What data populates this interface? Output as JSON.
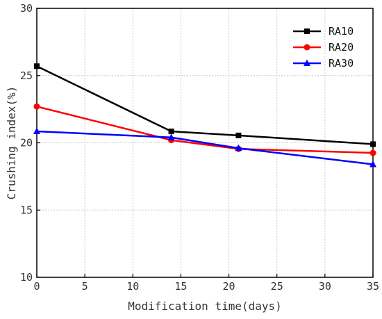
{
  "chart_data": {
    "type": "line",
    "title": "",
    "xlabel": "Modification time(days)",
    "ylabel": "Crushing index(%)",
    "xlim": [
      0,
      35
    ],
    "ylim": [
      10,
      30
    ],
    "xticks": [
      0,
      5,
      10,
      15,
      20,
      25,
      30,
      35
    ],
    "yticks": [
      10,
      15,
      20,
      25,
      30
    ],
    "xtick_labels": [
      "0",
      "5",
      "10",
      "15",
      "20",
      "25",
      "30",
      "35"
    ],
    "ytick_labels": [
      "10",
      "15",
      "20",
      "25",
      "30"
    ],
    "grid": true,
    "legend_position": "top-right",
    "x": [
      0,
      14,
      21,
      35
    ],
    "series": [
      {
        "name": "RA10",
        "values": [
          25.7,
          20.85,
          20.55,
          19.9
        ],
        "color": "#000000",
        "marker": "square"
      },
      {
        "name": "RA20",
        "values": [
          22.7,
          20.2,
          19.55,
          19.25
        ],
        "color": "#ff0000",
        "marker": "circle"
      },
      {
        "name": "RA30",
        "values": [
          20.85,
          20.4,
          19.6,
          18.4
        ],
        "color": "#0000ff",
        "marker": "triangle"
      }
    ]
  }
}
